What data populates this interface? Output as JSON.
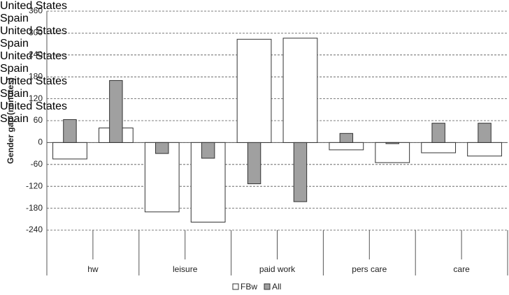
{
  "chart_data": {
    "type": "bar",
    "ylabel": "Gender gap (minutes)",
    "categories": [
      "United States",
      "Spain",
      "United States",
      "Spain",
      "United States",
      "Spain",
      "United States",
      "Spain",
      "United States",
      "Spain"
    ],
    "groups": [
      "hw",
      "leisure",
      "paid work",
      "pers care",
      "care"
    ],
    "series": [
      {
        "name": "FBw",
        "color": "#ffffff",
        "values": [
          -45,
          40,
          -190,
          -218,
          283,
          286,
          -20,
          -55,
          -28,
          -37
        ]
      },
      {
        "name": "All",
        "color": "#a0a0a0",
        "values": [
          63,
          170,
          -30,
          -43,
          -113,
          -162,
          25,
          -3,
          53,
          53
        ]
      }
    ],
    "ylim": [
      -240,
      360
    ],
    "yticks": [
      -240,
      -180,
      -120,
      -60,
      0,
      60,
      120,
      180,
      240,
      300,
      360
    ],
    "grid": true,
    "legend": "bottom"
  }
}
